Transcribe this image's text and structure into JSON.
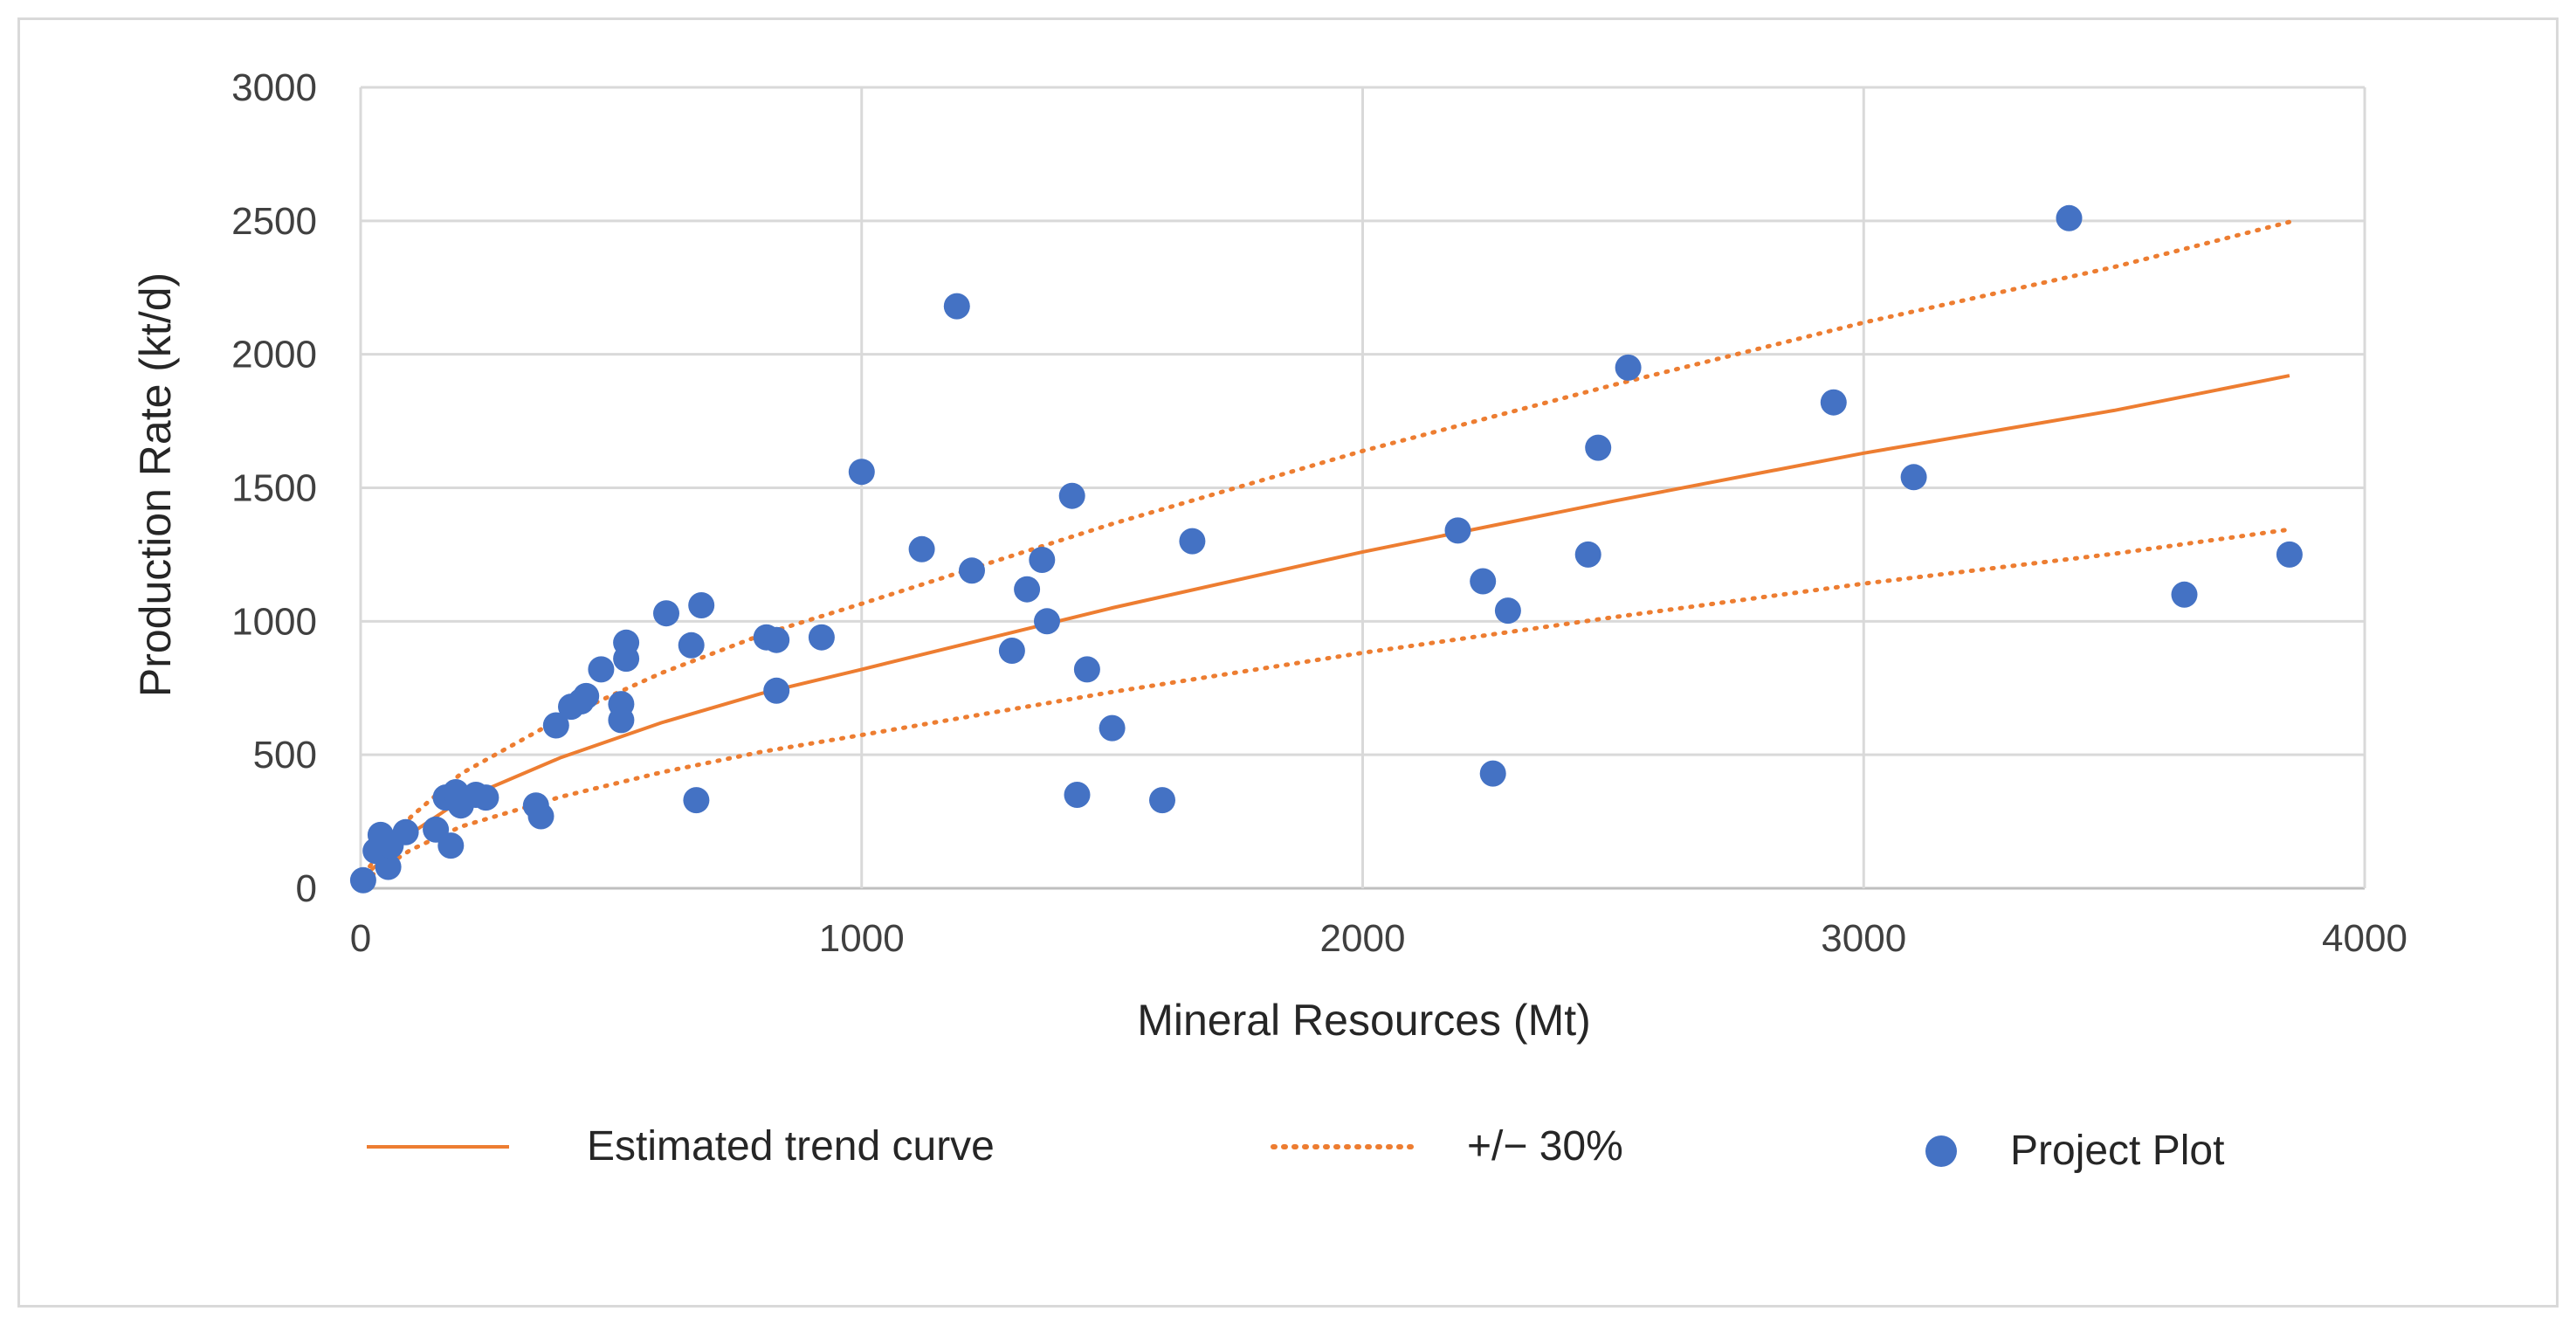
{
  "chart_data": {
    "type": "scatter",
    "title": "",
    "xlabel": "Mineral Resources (Mt)",
    "ylabel": "Production Rate (kt/d)",
    "xlim": [
      0,
      4000
    ],
    "ylim": [
      0,
      3000
    ],
    "xticks": [
      0,
      1000,
      2000,
      3000,
      4000
    ],
    "yticks": [
      0,
      500,
      1000,
      1500,
      2000,
      2500,
      3000
    ],
    "xtick_labels": [
      "0",
      "1000",
      "2000",
      "3000",
      "4000"
    ],
    "ytick_labels": [
      "0",
      "500",
      "1000",
      "1500",
      "2000",
      "2500",
      "3000"
    ],
    "grid": true,
    "legend_position": "bottom",
    "colors": {
      "points": "#4472c4",
      "trend": "#ed7d31",
      "grid": "#d9d9d9",
      "axis": "#bfbfbf"
    },
    "legend": [
      {
        "label": "Estimated trend curve",
        "style": "solid-line"
      },
      {
        "label": "+/− 30%",
        "style": "dotted-line"
      },
      {
        "label": "Project Plot",
        "style": "marker"
      }
    ],
    "trend": {
      "name": "Estimated trend curve",
      "x": [
        5,
        100,
        200,
        400,
        600,
        800,
        1000,
        1500,
        2000,
        2500,
        3000,
        3500,
        3850
      ],
      "y": [
        40,
        205,
        330,
        490,
        620,
        730,
        820,
        1050,
        1260,
        1450,
        1630,
        1790,
        1920
      ]
    },
    "upper_bound": {
      "name": "+30%",
      "x": [
        5,
        100,
        200,
        400,
        600,
        800,
        1000,
        1500,
        2000,
        2500,
        3000,
        3500,
        3850
      ],
      "y": [
        52,
        267,
        429,
        637,
        806,
        949,
        1066,
        1365,
        1638,
        1885,
        2119,
        2327,
        2496
      ]
    },
    "lower_bound": {
      "name": "-30%",
      "x": [
        5,
        100,
        200,
        400,
        600,
        800,
        1000,
        1500,
        2000,
        2500,
        3000,
        3500,
        3850
      ],
      "y": [
        28,
        144,
        231,
        343,
        434,
        511,
        574,
        735,
        882,
        1015,
        1141,
        1253,
        1344
      ]
    },
    "series": [
      {
        "name": "Project Plot",
        "points": [
          [
            5,
            30
          ],
          [
            30,
            140
          ],
          [
            40,
            200
          ],
          [
            55,
            80
          ],
          [
            60,
            160
          ],
          [
            90,
            210
          ],
          [
            150,
            220
          ],
          [
            170,
            340
          ],
          [
            180,
            160
          ],
          [
            190,
            360
          ],
          [
            200,
            310
          ],
          [
            230,
            350
          ],
          [
            250,
            340
          ],
          [
            350,
            310
          ],
          [
            360,
            270
          ],
          [
            390,
            610
          ],
          [
            420,
            680
          ],
          [
            440,
            700
          ],
          [
            450,
            720
          ],
          [
            480,
            820
          ],
          [
            520,
            690
          ],
          [
            520,
            630
          ],
          [
            530,
            920
          ],
          [
            530,
            860
          ],
          [
            610,
            1030
          ],
          [
            660,
            910
          ],
          [
            670,
            330
          ],
          [
            680,
            1060
          ],
          [
            810,
            940
          ],
          [
            830,
            930
          ],
          [
            830,
            740
          ],
          [
            920,
            940
          ],
          [
            1000,
            1560
          ],
          [
            1120,
            1270
          ],
          [
            1190,
            2180
          ],
          [
            1220,
            1190
          ],
          [
            1300,
            890
          ],
          [
            1330,
            1120
          ],
          [
            1360,
            1230
          ],
          [
            1370,
            1000
          ],
          [
            1420,
            1470
          ],
          [
            1430,
            350
          ],
          [
            1450,
            820
          ],
          [
            1500,
            600
          ],
          [
            1600,
            330
          ],
          [
            1660,
            1300
          ],
          [
            2190,
            1340
          ],
          [
            2240,
            1150
          ],
          [
            2260,
            430
          ],
          [
            2290,
            1040
          ],
          [
            2450,
            1250
          ],
          [
            2470,
            1650
          ],
          [
            2530,
            1950
          ],
          [
            2940,
            1820
          ],
          [
            3100,
            1540
          ],
          [
            3410,
            2510
          ],
          [
            3640,
            1100
          ],
          [
            3850,
            1250
          ]
        ]
      }
    ]
  }
}
